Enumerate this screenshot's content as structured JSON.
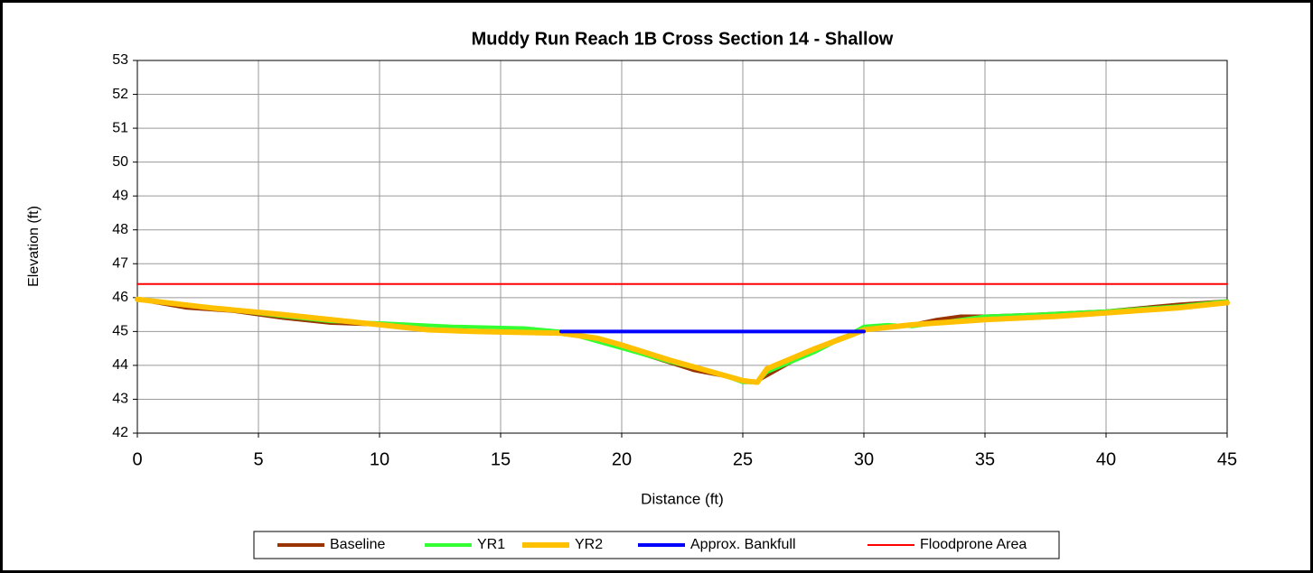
{
  "chart_data": {
    "type": "line",
    "title": "Muddy Run Reach 1B Cross Section 14 - Shallow",
    "xlabel": "Distance (ft)",
    "ylabel": "Elevation (ft)",
    "xlim": [
      0,
      45
    ],
    "xticks": [
      0,
      5,
      10,
      15,
      20,
      25,
      30,
      35,
      40,
      45
    ],
    "ylim": [
      42,
      53
    ],
    "yticks": [
      42,
      43,
      44,
      45,
      46,
      47,
      48,
      49,
      50,
      51,
      52,
      53
    ],
    "grid": true,
    "legend": "bottom",
    "series": [
      {
        "name": "Baseline",
        "color": "#993300",
        "width": 4,
        "x": [
          0,
          2,
          4,
          6,
          8,
          10,
          12,
          14,
          16,
          17.5,
          19,
          21,
          23,
          24.5,
          25,
          25.5,
          26,
          27,
          28,
          29,
          30,
          32,
          33,
          34,
          35,
          37,
          40,
          43,
          45
        ],
        "values": [
          45.95,
          45.7,
          45.6,
          45.4,
          45.25,
          45.2,
          45.05,
          45.0,
          45.0,
          44.95,
          44.8,
          44.3,
          43.85,
          43.65,
          43.5,
          43.5,
          43.7,
          44.1,
          44.5,
          44.8,
          45.05,
          45.2,
          45.35,
          45.45,
          45.45,
          45.5,
          45.6,
          45.8,
          45.9
        ]
      },
      {
        "name": "YR1",
        "color": "#33ff33",
        "width": 4,
        "x": [
          0,
          3,
          6,
          8,
          10,
          13,
          16,
          17.5,
          19,
          20,
          22,
          24,
          25,
          25.6,
          26,
          28,
          29.5,
          30,
          31,
          32,
          33,
          35,
          37,
          40,
          43,
          45
        ],
        "values": [
          45.95,
          45.7,
          45.45,
          45.3,
          45.25,
          45.15,
          45.1,
          45.0,
          44.7,
          44.5,
          44.1,
          43.75,
          43.5,
          43.5,
          43.8,
          44.4,
          44.95,
          45.15,
          45.2,
          45.15,
          45.25,
          45.45,
          45.5,
          45.6,
          45.75,
          45.9
        ]
      },
      {
        "name": "YR2",
        "color": "#ffc000",
        "width": 6,
        "x": [
          0,
          3,
          6,
          8,
          10,
          12,
          14,
          17.5,
          19,
          20,
          22,
          24,
          25,
          25.6,
          26,
          28,
          29.5,
          30,
          32,
          35,
          38,
          40,
          43,
          45
        ],
        "values": [
          45.95,
          45.7,
          45.5,
          45.35,
          45.2,
          45.05,
          45.0,
          44.95,
          44.8,
          44.6,
          44.15,
          43.75,
          43.55,
          43.5,
          43.9,
          44.5,
          44.9,
          45.05,
          45.2,
          45.35,
          45.45,
          45.55,
          45.7,
          45.85
        ]
      },
      {
        "name": "Approx. Bankfull",
        "color": "#0000ff",
        "width": 4,
        "x": [
          17.5,
          30
        ],
        "values": [
          45.0,
          45.0
        ]
      },
      {
        "name": "Floodprone Area",
        "color": "#ff0000",
        "width": 2,
        "x": [
          0,
          45
        ],
        "values": [
          46.4,
          46.4
        ]
      }
    ]
  }
}
